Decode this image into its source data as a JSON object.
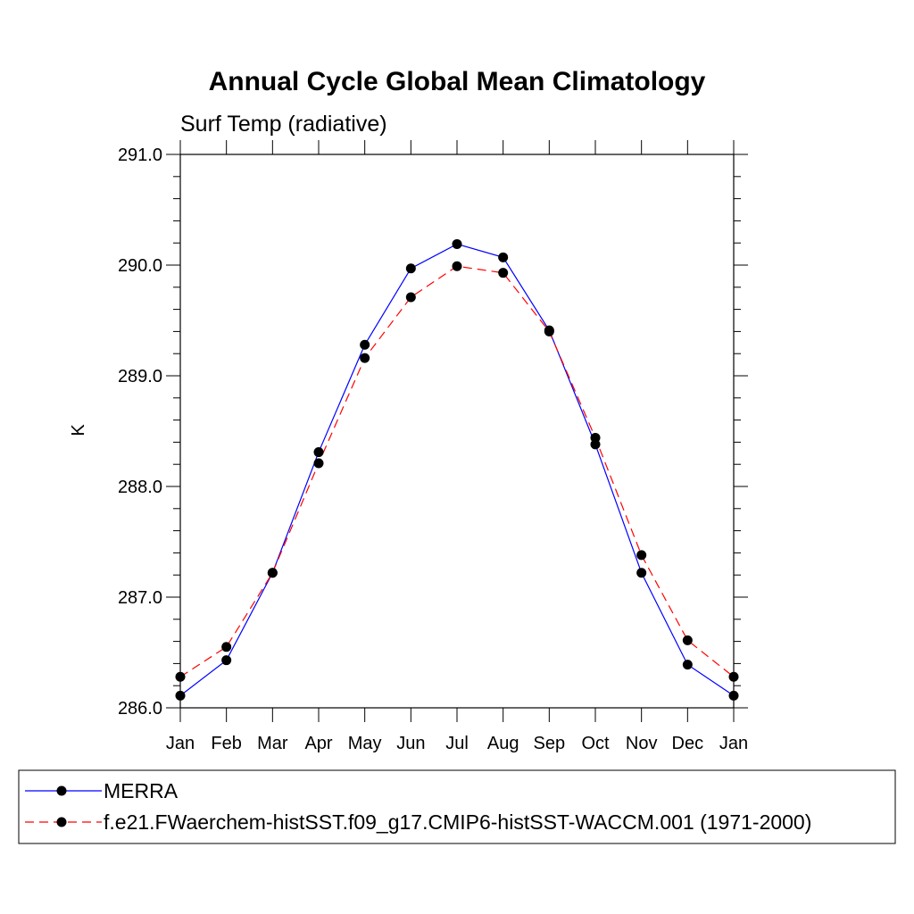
{
  "chart_data": {
    "type": "line",
    "title": "Annual Cycle Global Mean Climatology",
    "subtitle": "Surf Temp (radiative)",
    "ylabel": "K",
    "ylim": [
      286.0,
      291.0
    ],
    "y_ticks": [
      "286.0",
      "287.0",
      "288.0",
      "289.0",
      "290.0",
      "291.0"
    ],
    "categories": [
      "Jan",
      "Feb",
      "Mar",
      "Apr",
      "May",
      "Jun",
      "Jul",
      "Aug",
      "Sep",
      "Oct",
      "Nov",
      "Dec",
      "Jan"
    ],
    "series": [
      {
        "name": "MERRA",
        "color": "#0000ff",
        "dash": "solid",
        "values": [
          286.11,
          286.43,
          287.22,
          288.31,
          289.28,
          289.97,
          290.19,
          290.07,
          289.41,
          288.38,
          287.22,
          286.39,
          286.11
        ]
      },
      {
        "name": "f.e21.FWaerchem-histSST.f09_g17.CMIP6-histSST-WACCM.001 (1971-2000)",
        "color": "#ff0000",
        "dash": "dashed",
        "values": [
          286.28,
          286.55,
          287.22,
          288.21,
          289.16,
          289.71,
          289.99,
          289.93,
          289.4,
          288.44,
          287.38,
          286.61,
          286.28
        ]
      }
    ],
    "legend_position": "bottom"
  }
}
